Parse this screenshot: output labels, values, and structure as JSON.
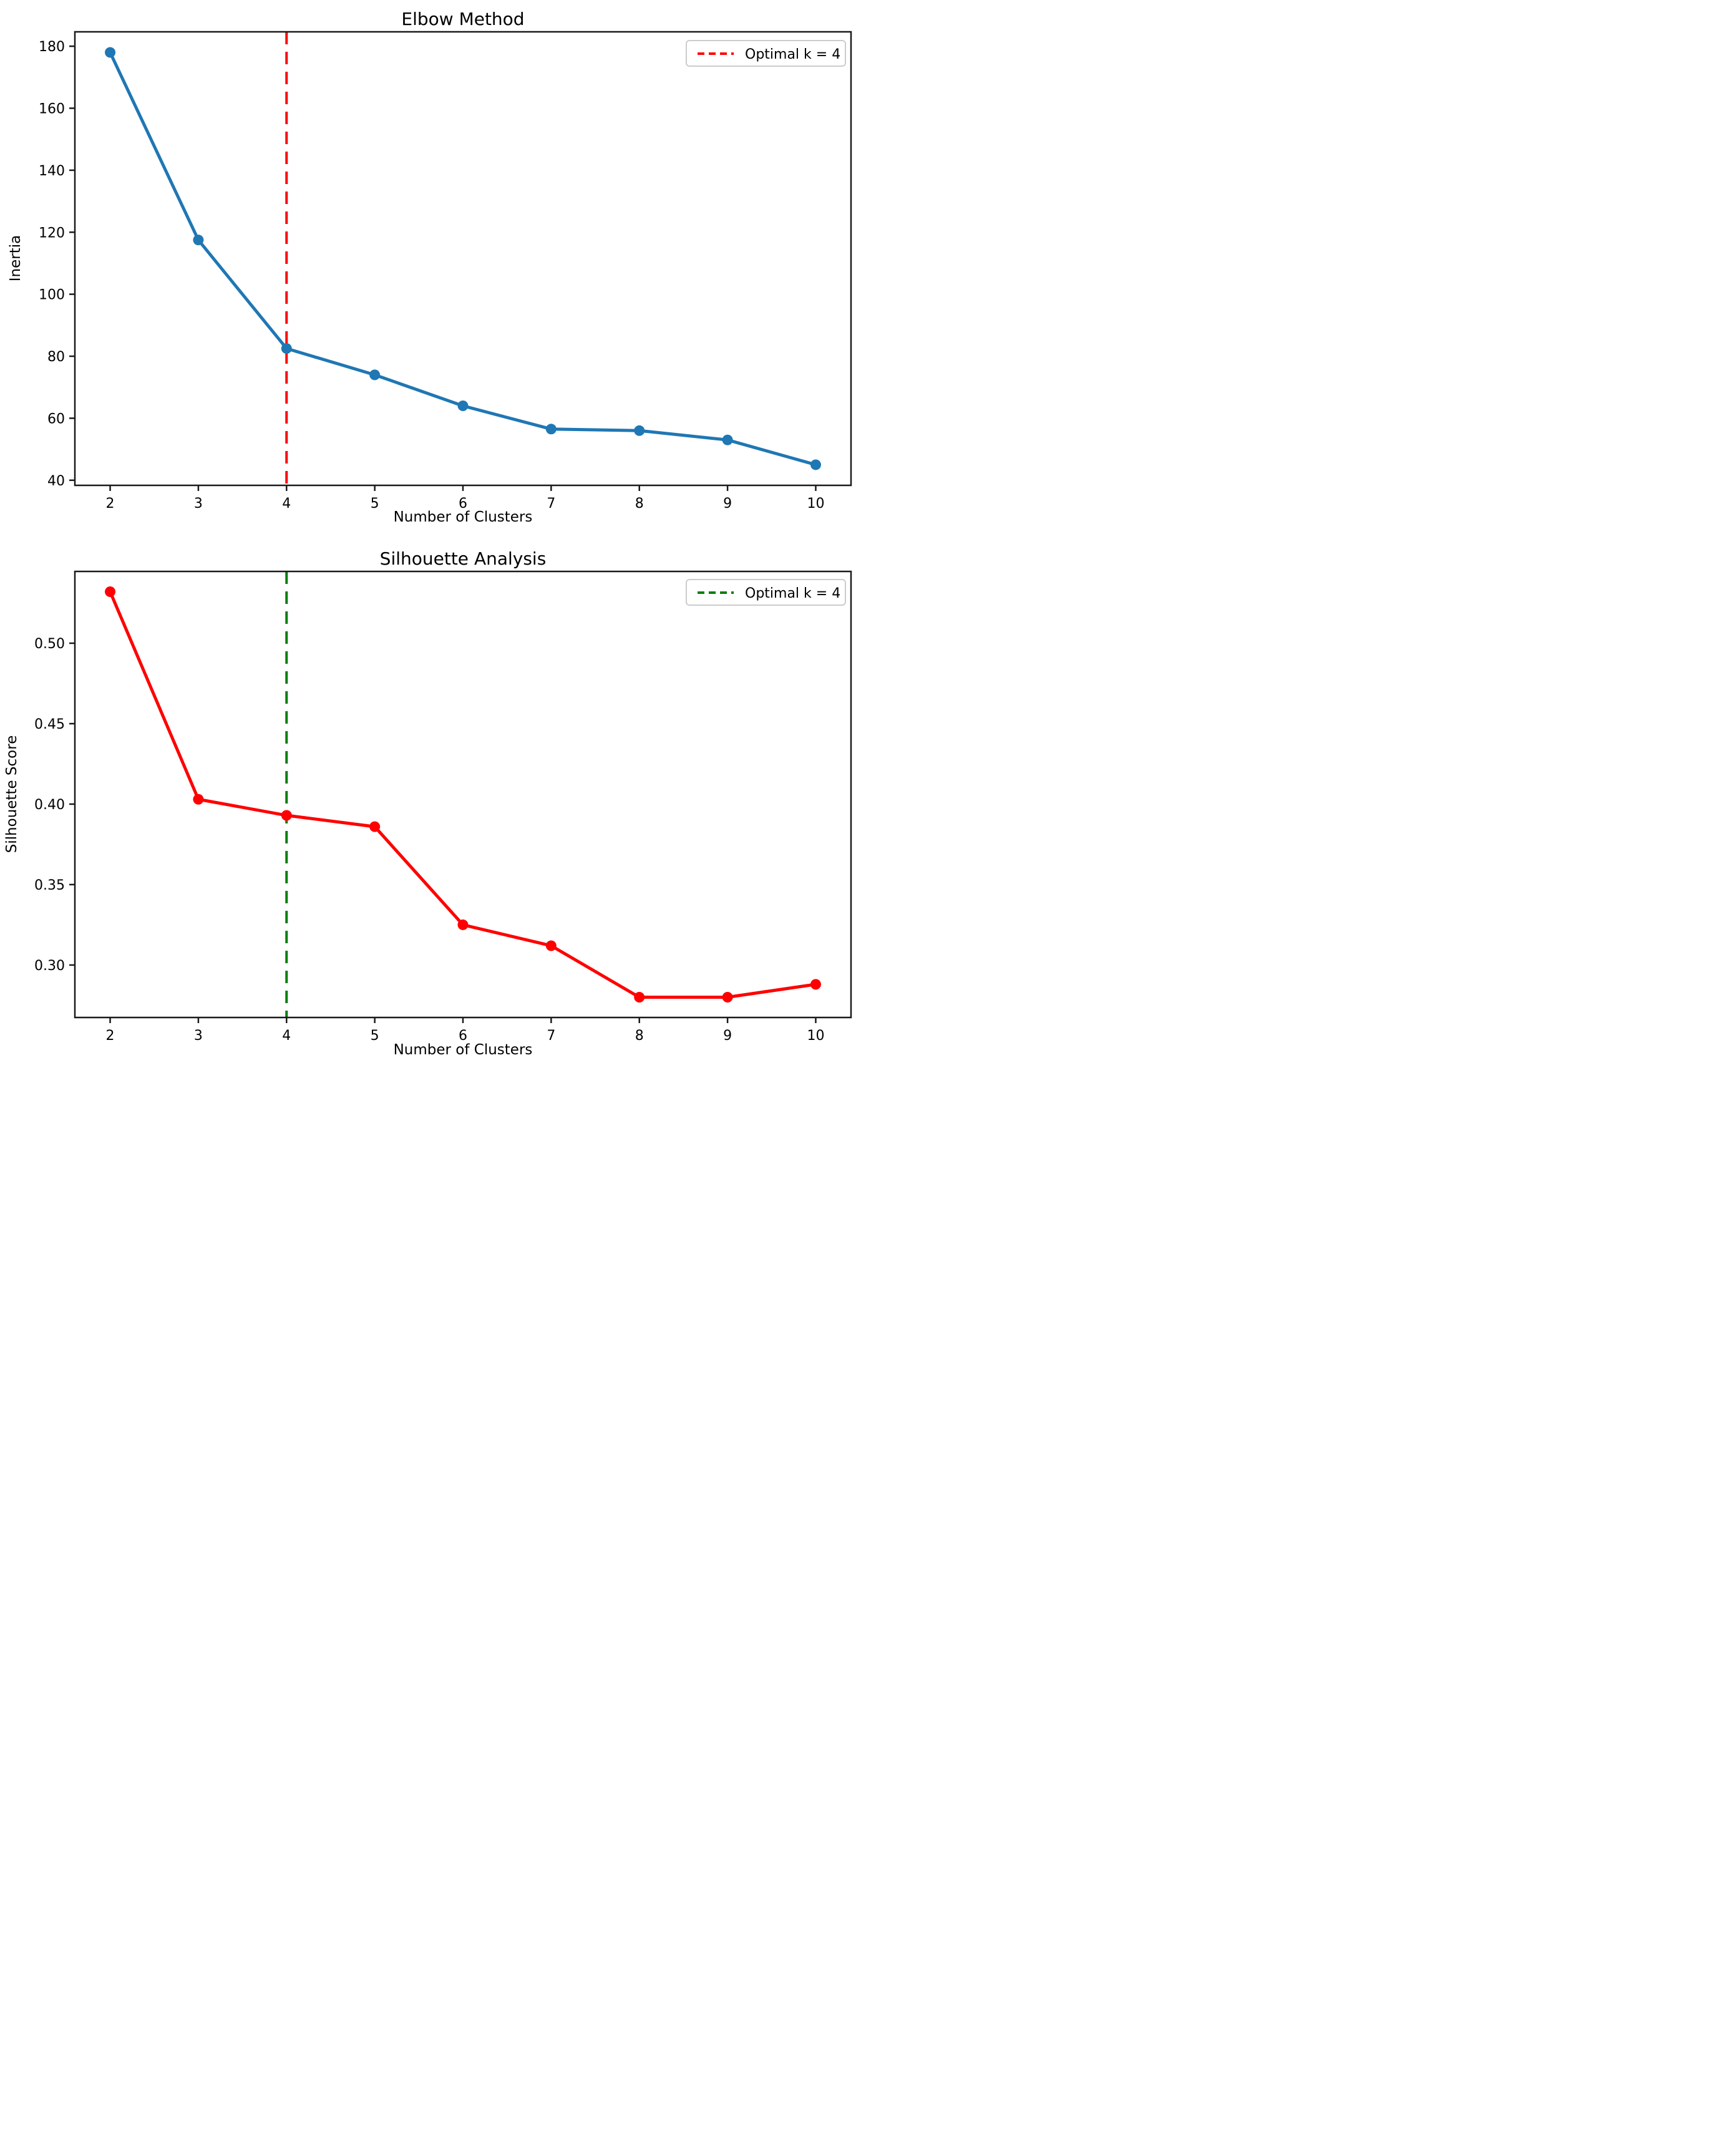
{
  "chart_data": [
    {
      "type": "line",
      "title": "Elbow Method",
      "xlabel": "Number of Clusters",
      "ylabel": "Inertia",
      "x": [
        2,
        3,
        4,
        5,
        6,
        7,
        8,
        9,
        10
      ],
      "series": [
        {
          "name": "Inertia",
          "color": "#1f77b4",
          "marker": "circle",
          "values": [
            178,
            117.5,
            82.5,
            74,
            64,
            56.5,
            56,
            53,
            45
          ]
        }
      ],
      "vline": {
        "x": 4,
        "color": "#ff0000",
        "style": "dashed"
      },
      "legend": {
        "label": "Optimal k = 4",
        "position": "upper right",
        "sample_color": "#ff0000"
      },
      "xticks": [
        {
          "value": 2,
          "label": "2"
        },
        {
          "value": 3,
          "label": "3"
        },
        {
          "value": 4,
          "label": "4"
        },
        {
          "value": 5,
          "label": "5"
        },
        {
          "value": 6,
          "label": "6"
        },
        {
          "value": 7,
          "label": "7"
        },
        {
          "value": 8,
          "label": "8"
        },
        {
          "value": 9,
          "label": "9"
        },
        {
          "value": 10,
          "label": "10"
        }
      ],
      "yticks": [
        {
          "value": 40,
          "label": "40"
        },
        {
          "value": 60,
          "label": "60"
        },
        {
          "value": 80,
          "label": "80"
        },
        {
          "value": 100,
          "label": "100"
        },
        {
          "value": 120,
          "label": "120"
        },
        {
          "value": 140,
          "label": "140"
        },
        {
          "value": 160,
          "label": "160"
        },
        {
          "value": 180,
          "label": "180"
        }
      ],
      "xlim": [
        1.6,
        10.4
      ],
      "ylim": [
        38.35,
        184.65
      ],
      "grid": false
    },
    {
      "type": "line",
      "title": "Silhouette Analysis",
      "xlabel": "Number of Clusters",
      "ylabel": "Silhouette Score",
      "x": [
        2,
        3,
        4,
        5,
        6,
        7,
        8,
        9,
        10
      ],
      "series": [
        {
          "name": "Silhouette Score",
          "color": "#ff0000",
          "marker": "circle",
          "values": [
            0.532,
            0.403,
            0.393,
            0.386,
            0.325,
            0.312,
            0.28,
            0.28,
            0.288
          ]
        }
      ],
      "vline": {
        "x": 4,
        "color": "#008000",
        "style": "dashed"
      },
      "legend": {
        "label": "Optimal k = 4",
        "position": "upper right",
        "sample_color": "#008000"
      },
      "xticks": [
        {
          "value": 2,
          "label": "2"
        },
        {
          "value": 3,
          "label": "3"
        },
        {
          "value": 4,
          "label": "4"
        },
        {
          "value": 5,
          "label": "5"
        },
        {
          "value": 6,
          "label": "6"
        },
        {
          "value": 7,
          "label": "7"
        },
        {
          "value": 8,
          "label": "8"
        },
        {
          "value": 9,
          "label": "9"
        },
        {
          "value": 10,
          "label": "10"
        }
      ],
      "yticks": [
        {
          "value": 0.3,
          "label": "0.30"
        },
        {
          "value": 0.35,
          "label": "0.35"
        },
        {
          "value": 0.4,
          "label": "0.40"
        },
        {
          "value": 0.45,
          "label": "0.45"
        },
        {
          "value": 0.5,
          "label": "0.50"
        }
      ],
      "xlim": [
        1.6,
        10.4
      ],
      "ylim": [
        0.2674,
        0.5446
      ],
      "grid": false
    }
  ],
  "colors": {
    "background": "#ffffff",
    "axes": "#1a1a1a",
    "text": "#000000",
    "elbow_line": "#1f77b4",
    "silhouette_line": "#ff0000",
    "elbow_vline": "#ff0000",
    "silhouette_vline": "#008000"
  }
}
